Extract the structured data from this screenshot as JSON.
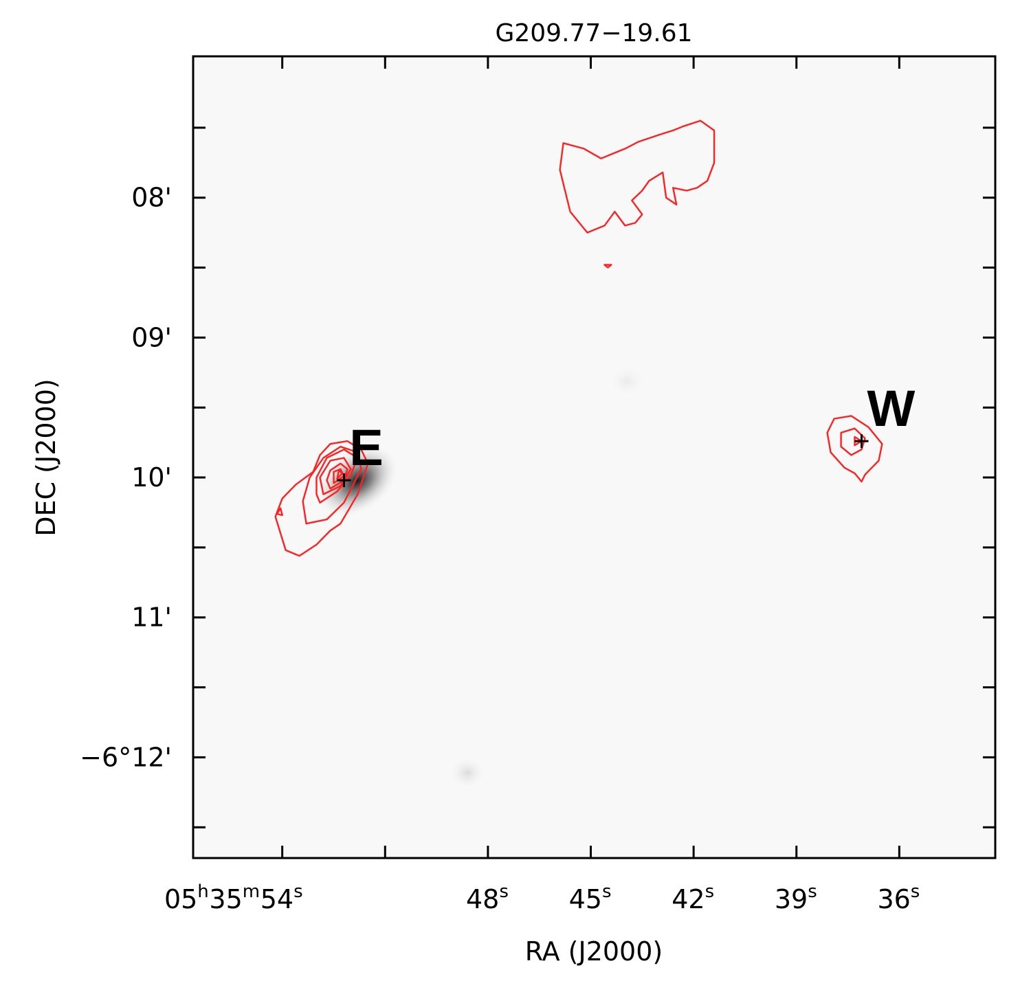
{
  "chart_data": {
    "type": "image-contour",
    "title": "G209.77−19.61",
    "xlabel": "RA (J2000)",
    "ylabel": "DEC (J2000)",
    "xaxis": {
      "unit": "seconds of RA (05h35m)",
      "range": [
        56.6,
        33.2
      ],
      "reversed": true,
      "ticks": [
        {
          "value": 54,
          "prefix": "05",
          "h": "h",
          "mid": "35",
          "m": "m",
          "sec": "54",
          "s": "s"
        },
        {
          "value": 48,
          "prefix": "",
          "h": "",
          "mid": "",
          "m": "",
          "sec": "48",
          "s": "s"
        },
        {
          "value": 45,
          "prefix": "",
          "h": "",
          "mid": "",
          "m": "",
          "sec": "45",
          "s": "s"
        },
        {
          "value": 42,
          "prefix": "",
          "h": "",
          "mid": "",
          "m": "",
          "sec": "42",
          "s": "s"
        },
        {
          "value": 39,
          "prefix": "",
          "h": "",
          "mid": "",
          "m": "",
          "sec": "39",
          "s": "s"
        },
        {
          "value": 36,
          "prefix": "",
          "h": "",
          "mid": "",
          "m": "",
          "sec": "36",
          "s": "s"
        }
      ],
      "minor_ticks": [
        54,
        51,
        48,
        45,
        42,
        39,
        36
      ]
    },
    "yaxis": {
      "unit": "arcmin south of -6 deg",
      "range": [
        6.99,
        12.72
      ],
      "ticks": [
        {
          "value": 8,
          "label": "08'"
        },
        {
          "value": 9,
          "label": "09'"
        },
        {
          "value": 10,
          "label": "10'"
        },
        {
          "value": 11,
          "label": "11'"
        },
        {
          "value": 12,
          "label": "−6°12'"
        }
      ],
      "minor_ticks": [
        7.5,
        8,
        8.5,
        9,
        9.5,
        10,
        10.5,
        11,
        11.5,
        12,
        12.5
      ]
    },
    "grid": false,
    "background": "greyscale intensity image",
    "contour_color": "#ff2020",
    "marker_color": "#000000",
    "sources": [
      {
        "name": "E",
        "ra_s": 52.2,
        "dec_arcmin": 10.02
      },
      {
        "name": "W",
        "ra_s": 37.1,
        "dec_arcmin": 9.74
      }
    ],
    "contours": [
      {
        "id": "E-1",
        "points": [
          [
            54.2,
            10.28
          ],
          [
            53.9,
            10.52
          ],
          [
            53.5,
            10.56
          ],
          [
            53.0,
            10.48
          ],
          [
            52.6,
            10.38
          ],
          [
            52.3,
            10.33
          ],
          [
            51.8,
            10.12
          ],
          [
            51.5,
            9.9
          ],
          [
            51.7,
            9.8
          ],
          [
            52.1,
            9.74
          ],
          [
            52.6,
            9.76
          ],
          [
            52.9,
            9.84
          ],
          [
            53.1,
            9.96
          ],
          [
            53.6,
            10.05
          ],
          [
            54.0,
            10.15
          ]
        ]
      },
      {
        "id": "E-2",
        "points": [
          [
            53.3,
            10.33
          ],
          [
            52.7,
            10.3
          ],
          [
            52.2,
            10.18
          ],
          [
            51.7,
            9.94
          ],
          [
            51.8,
            9.82
          ],
          [
            52.3,
            9.78
          ],
          [
            52.8,
            9.86
          ],
          [
            53.2,
            10.0
          ],
          [
            53.4,
            10.17
          ]
        ]
      },
      {
        "id": "E-3",
        "points": [
          [
            52.9,
            10.18
          ],
          [
            52.4,
            10.1
          ],
          [
            52.0,
            9.98
          ],
          [
            51.8,
            9.86
          ],
          [
            52.2,
            9.8
          ],
          [
            52.7,
            9.86
          ],
          [
            53.0,
            10.0
          ],
          [
            53.0,
            10.12
          ]
        ]
      },
      {
        "id": "E-4",
        "points": [
          [
            52.8,
            10.12
          ],
          [
            52.3,
            10.06
          ],
          [
            52.0,
            9.94
          ],
          [
            52.2,
            9.86
          ],
          [
            52.6,
            9.88
          ],
          [
            52.9,
            10.0
          ]
        ]
      },
      {
        "id": "E-5",
        "points": [
          [
            52.6,
            10.08
          ],
          [
            52.2,
            10.02
          ],
          [
            52.1,
            9.94
          ],
          [
            52.3,
            9.9
          ],
          [
            52.6,
            9.95
          ],
          [
            52.7,
            10.02
          ]
        ]
      },
      {
        "id": "E-6",
        "points": [
          [
            52.5,
            10.04
          ],
          [
            52.2,
            9.99
          ],
          [
            52.3,
            9.94
          ],
          [
            52.5,
            9.96
          ]
        ]
      },
      {
        "id": "E-7",
        "points": [
          [
            52.4,
            10.01
          ],
          [
            52.25,
            9.97
          ],
          [
            52.35,
            9.95
          ]
        ]
      },
      {
        "id": "E-spot",
        "points": [
          [
            54.15,
            10.26
          ],
          [
            54.0,
            10.27
          ],
          [
            54.05,
            10.22
          ]
        ]
      },
      {
        "id": "W-1",
        "points": [
          [
            37.9,
            9.58
          ],
          [
            37.4,
            9.56
          ],
          [
            36.9,
            9.64
          ],
          [
            36.5,
            9.76
          ],
          [
            36.6,
            9.88
          ],
          [
            37.0,
            9.98
          ],
          [
            37.1,
            10.03
          ],
          [
            37.3,
            9.97
          ],
          [
            37.6,
            9.93
          ],
          [
            38.0,
            9.82
          ],
          [
            38.1,
            9.68
          ]
        ]
      },
      {
        "id": "W-2",
        "points": [
          [
            37.7,
            9.68
          ],
          [
            37.3,
            9.65
          ],
          [
            37.0,
            9.72
          ],
          [
            37.1,
            9.8
          ],
          [
            37.4,
            9.84
          ],
          [
            37.7,
            9.78
          ]
        ]
      },
      {
        "id": "W-3",
        "points": [
          [
            37.3,
            9.71
          ],
          [
            37.1,
            9.74
          ],
          [
            37.3,
            9.77
          ]
        ]
      },
      {
        "id": "N-1",
        "points": [
          [
            45.8,
            7.61
          ],
          [
            45.2,
            7.65
          ],
          [
            44.7,
            7.72
          ],
          [
            44.3,
            7.68
          ],
          [
            44.0,
            7.65
          ],
          [
            43.6,
            7.6
          ],
          [
            43.0,
            7.55
          ],
          [
            42.6,
            7.52
          ],
          [
            42.3,
            7.49
          ],
          [
            41.8,
            7.45
          ],
          [
            41.4,
            7.52
          ],
          [
            41.4,
            7.75
          ],
          [
            41.6,
            7.88
          ],
          [
            41.9,
            7.93
          ],
          [
            42.2,
            7.95
          ],
          [
            42.6,
            7.93
          ],
          [
            42.5,
            8.05
          ],
          [
            42.8,
            8.0
          ],
          [
            42.9,
            7.82
          ],
          [
            43.3,
            7.88
          ],
          [
            43.5,
            7.95
          ],
          [
            43.8,
            8.02
          ],
          [
            43.5,
            8.12
          ],
          [
            43.7,
            8.18
          ],
          [
            44.0,
            8.2
          ],
          [
            44.3,
            8.1
          ],
          [
            44.6,
            8.2
          ],
          [
            45.1,
            8.25
          ],
          [
            45.6,
            8.1
          ],
          [
            45.9,
            7.8
          ]
        ]
      },
      {
        "id": "N-blob",
        "points": [
          [
            44.6,
            8.48
          ],
          [
            44.4,
            8.48
          ],
          [
            44.5,
            8.5
          ]
        ]
      }
    ]
  }
}
